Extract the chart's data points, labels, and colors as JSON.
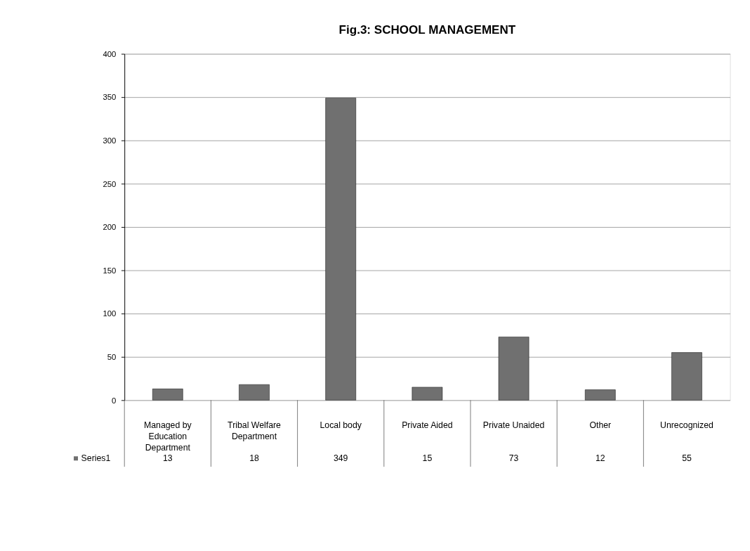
{
  "chart_data": {
    "type": "bar",
    "title": "Fig.3: SCHOOL MANAGEMENT",
    "categories": [
      "Managed by Education Department",
      "Tribal Welfare Department",
      "Local body",
      "Private Aided",
      "Private Unaided",
      "Other",
      "Unrecognized"
    ],
    "series": [
      {
        "name": "Series1",
        "color": "#707070",
        "values": [
          13,
          18,
          349,
          15,
          73,
          12,
          55
        ]
      }
    ],
    "ylim": [
      0,
      400
    ],
    "yticks": [
      0,
      50,
      100,
      150,
      200,
      250,
      300,
      350,
      400
    ],
    "grid": "y",
    "data_labels": true,
    "legend": "bottom left"
  }
}
